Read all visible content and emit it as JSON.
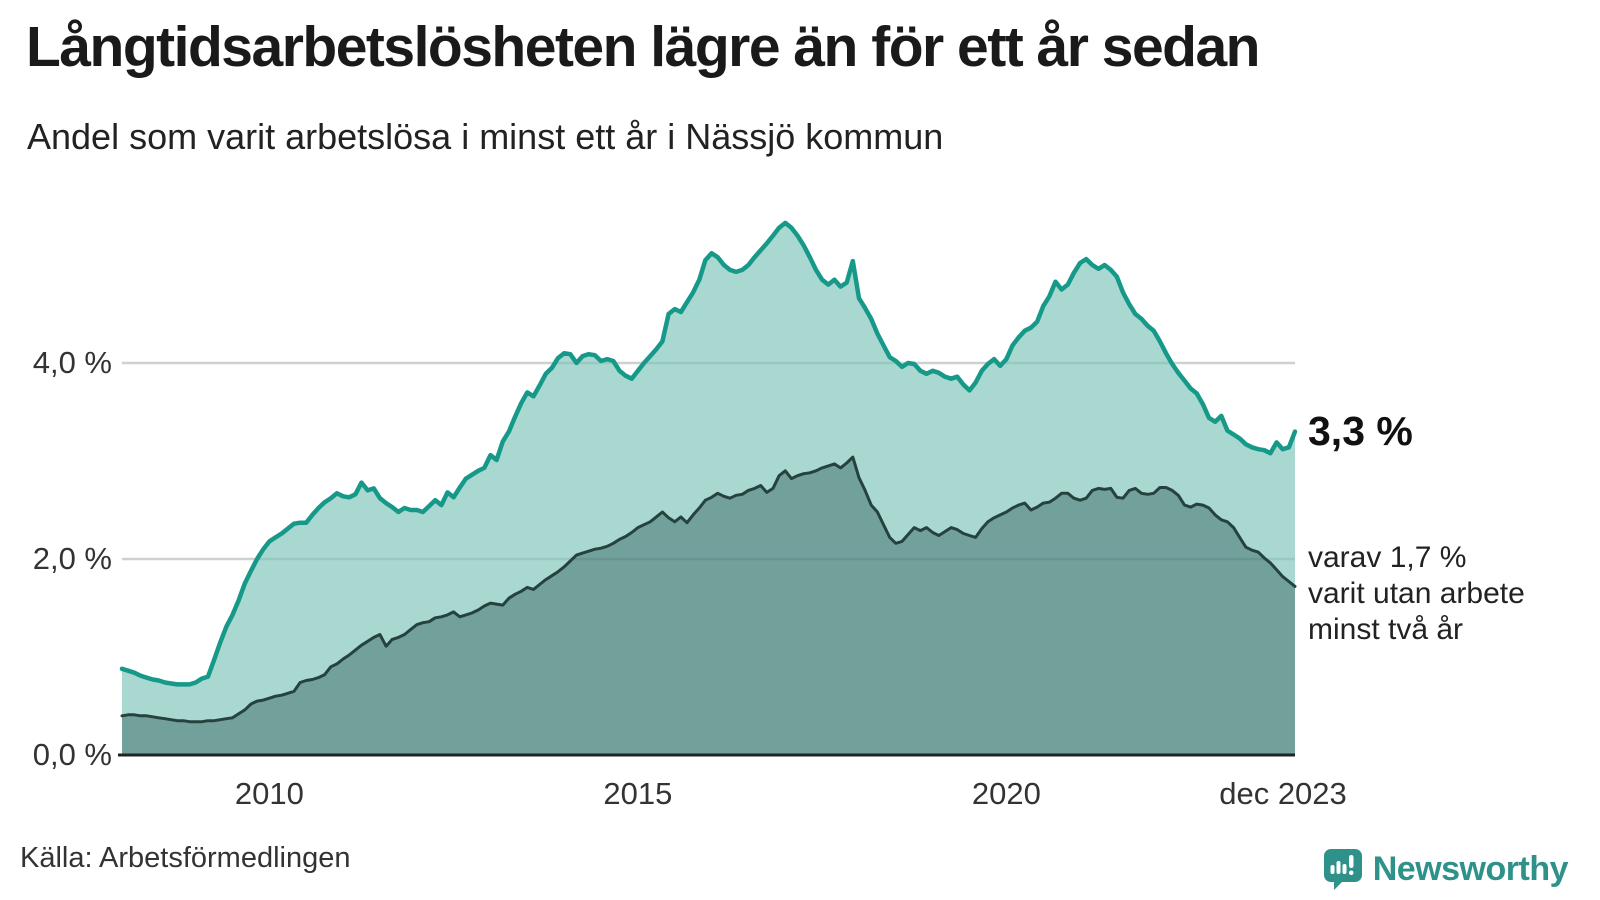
{
  "chart_data": {
    "type": "area",
    "title": "Långtidsarbetslösheten lägre än för ett år sedan",
    "subtitle": "Andel som varit arbetslösa i minst ett år i Nässjö kommun",
    "unit": "%",
    "frequency": "monthly",
    "x_start": "2008-01",
    "x_end": "2023-12",
    "ylim": [
      0,
      5.6
    ],
    "grid": true,
    "legend_position": "none",
    "y_ticks": [
      {
        "value": 0,
        "label": "0,0 %"
      },
      {
        "value": 2,
        "label": "2,0 %"
      },
      {
        "value": 4,
        "label": "4,0 %"
      }
    ],
    "x_ticks": [
      {
        "month_index": 24,
        "label": "2010"
      },
      {
        "month_index": 84,
        "label": "2015"
      },
      {
        "month_index": 144,
        "label": "2020"
      },
      {
        "month_index": 191,
        "label": "dec 2023"
      }
    ],
    "series": [
      {
        "key": "unemployed_min_one_year",
        "line_color": "#17998a",
        "fill_color": "#a9d8d0",
        "line_width": 4.5,
        "last_value": 3.3,
        "values": [
          0.88,
          0.86,
          0.84,
          0.81,
          0.79,
          0.77,
          0.76,
          0.74,
          0.73,
          0.72,
          0.72,
          0.72,
          0.74,
          0.78,
          0.8,
          0.97,
          1.15,
          1.31,
          1.43,
          1.58,
          1.75,
          1.88,
          2.0,
          2.1,
          2.18,
          2.22,
          2.26,
          2.31,
          2.36,
          2.37,
          2.37,
          2.45,
          2.52,
          2.58,
          2.62,
          2.67,
          2.64,
          2.63,
          2.66,
          2.78,
          2.7,
          2.72,
          2.62,
          2.57,
          2.53,
          2.48,
          2.52,
          2.5,
          2.5,
          2.48,
          2.54,
          2.6,
          2.55,
          2.68,
          2.63,
          2.73,
          2.82,
          2.86,
          2.9,
          2.93,
          3.06,
          3.01,
          3.2,
          3.3,
          3.45,
          3.59,
          3.7,
          3.66,
          3.77,
          3.89,
          3.95,
          4.05,
          4.1,
          4.09,
          4.0,
          4.07,
          4.09,
          4.08,
          4.02,
          4.04,
          4.02,
          3.92,
          3.87,
          3.84,
          3.92,
          4.0,
          4.07,
          4.14,
          4.22,
          4.5,
          4.55,
          4.52,
          4.62,
          4.72,
          4.85,
          5.05,
          5.12,
          5.08,
          5.0,
          4.95,
          4.93,
          4.95,
          5.0,
          5.08,
          5.15,
          5.22,
          5.3,
          5.38,
          5.43,
          5.38,
          5.3,
          5.2,
          5.08,
          4.95,
          4.85,
          4.8,
          4.85,
          4.78,
          4.82,
          5.04,
          4.66,
          4.56,
          4.45,
          4.3,
          4.18,
          4.06,
          4.02,
          3.96,
          4.0,
          3.99,
          3.92,
          3.89,
          3.92,
          3.9,
          3.86,
          3.84,
          3.86,
          3.78,
          3.72,
          3.8,
          3.92,
          3.99,
          4.04,
          3.97,
          4.04,
          4.18,
          4.26,
          4.33,
          4.36,
          4.42,
          4.58,
          4.68,
          4.83,
          4.75,
          4.8,
          4.92,
          5.02,
          5.06,
          5.0,
          4.96,
          5.0,
          4.95,
          4.88,
          4.72,
          4.6,
          4.5,
          4.45,
          4.38,
          4.33,
          4.22,
          4.1,
          3.99,
          3.9,
          3.82,
          3.74,
          3.69,
          3.58,
          3.44,
          3.4,
          3.46,
          3.31,
          3.27,
          3.23,
          3.17,
          3.14,
          3.12,
          3.11,
          3.08,
          3.19,
          3.12,
          3.14,
          3.3
        ]
      },
      {
        "key": "unemployed_min_two_years",
        "line_color": "#26423f",
        "fill_color": "#72a09b",
        "line_width": 3,
        "last_value": 1.7,
        "values": [
          0.4,
          0.41,
          0.41,
          0.4,
          0.4,
          0.39,
          0.38,
          0.37,
          0.36,
          0.35,
          0.35,
          0.34,
          0.34,
          0.34,
          0.35,
          0.35,
          0.36,
          0.37,
          0.38,
          0.42,
          0.46,
          0.52,
          0.55,
          0.56,
          0.58,
          0.6,
          0.61,
          0.63,
          0.65,
          0.74,
          0.76,
          0.77,
          0.79,
          0.82,
          0.9,
          0.93,
          0.98,
          1.02,
          1.07,
          1.12,
          1.16,
          1.2,
          1.23,
          1.11,
          1.18,
          1.2,
          1.23,
          1.28,
          1.33,
          1.35,
          1.36,
          1.4,
          1.41,
          1.43,
          1.46,
          1.41,
          1.43,
          1.45,
          1.48,
          1.52,
          1.55,
          1.54,
          1.53,
          1.6,
          1.64,
          1.67,
          1.71,
          1.69,
          1.74,
          1.79,
          1.83,
          1.87,
          1.92,
          1.98,
          2.04,
          2.06,
          2.08,
          2.1,
          2.11,
          2.13,
          2.16,
          2.2,
          2.23,
          2.27,
          2.32,
          2.35,
          2.38,
          2.43,
          2.48,
          2.42,
          2.38,
          2.43,
          2.37,
          2.45,
          2.52,
          2.6,
          2.63,
          2.67,
          2.64,
          2.62,
          2.65,
          2.66,
          2.7,
          2.72,
          2.75,
          2.68,
          2.72,
          2.85,
          2.9,
          2.82,
          2.85,
          2.87,
          2.88,
          2.9,
          2.93,
          2.95,
          2.97,
          2.93,
          2.98,
          3.04,
          2.83,
          2.7,
          2.55,
          2.48,
          2.35,
          2.22,
          2.16,
          2.18,
          2.25,
          2.32,
          2.29,
          2.32,
          2.27,
          2.24,
          2.28,
          2.32,
          2.3,
          2.26,
          2.24,
          2.22,
          2.31,
          2.38,
          2.42,
          2.45,
          2.48,
          2.52,
          2.55,
          2.57,
          2.5,
          2.53,
          2.57,
          2.58,
          2.62,
          2.67,
          2.67,
          2.62,
          2.6,
          2.62,
          2.7,
          2.72,
          2.71,
          2.72,
          2.63,
          2.62,
          2.7,
          2.72,
          2.67,
          2.66,
          2.67,
          2.73,
          2.73,
          2.7,
          2.65,
          2.55,
          2.53,
          2.56,
          2.55,
          2.52,
          2.45,
          2.4,
          2.38,
          2.32,
          2.22,
          2.12,
          2.09,
          2.07,
          2.01,
          1.96,
          1.89,
          1.82,
          1.77,
          1.72
        ]
      }
    ],
    "annotations": {
      "end_value_label": "3,3 %",
      "secondary_lines": [
        "varav 1,7 %",
        "varit utan arbete",
        "minst två år"
      ]
    },
    "colors": {
      "grid": "#e3e3e3",
      "axis": "#222222",
      "tick_text": "#333333"
    }
  },
  "footer": {
    "source": "Källa: Arbetsförmedlingen",
    "brand": "Newsworthy",
    "brand_color": "#2e928a"
  }
}
